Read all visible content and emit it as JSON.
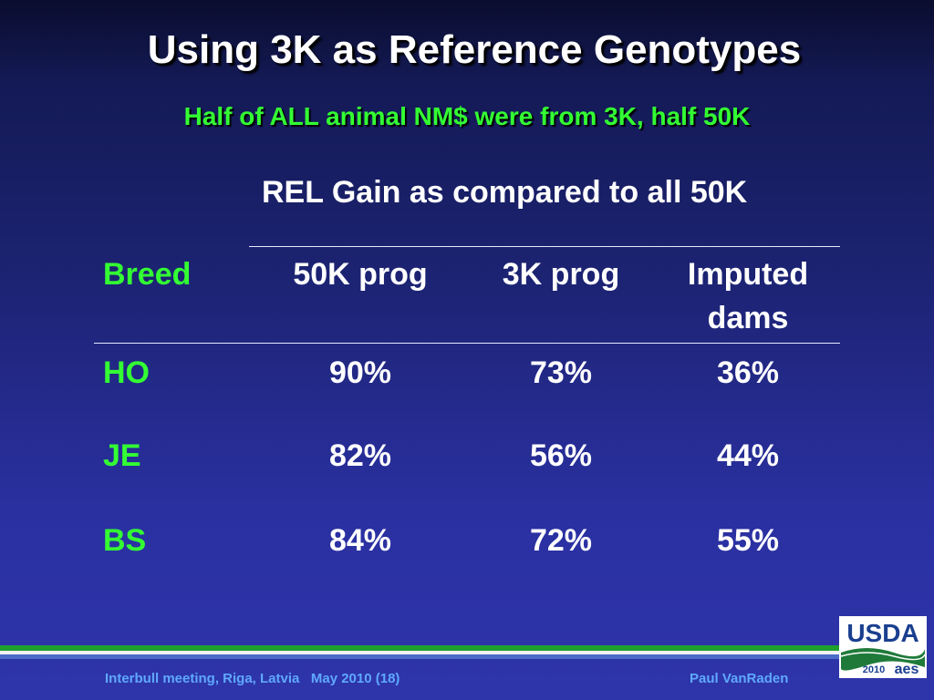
{
  "slide": {
    "title": "Using 3K as Reference Genotypes",
    "subtitle": "Half of  ALL animal NM$ were from 3K, half 50K",
    "table_heading": "REL Gain as compared to all 50K"
  },
  "table": {
    "headers": {
      "breed": "Breed",
      "col1": "50K prog",
      "col2": "3K prog",
      "col3_line1": "Imputed",
      "col3_line2": "dams"
    },
    "rows": [
      {
        "breed": "HO",
        "col1": "90%",
        "col2": "73%",
        "col3": "36%"
      },
      {
        "breed": "JE",
        "col1": "82%",
        "col2": "56%",
        "col3": "44%"
      },
      {
        "breed": "BS",
        "col1": "84%",
        "col2": "72%",
        "col3": "55%"
      }
    ]
  },
  "footer": {
    "left": "Interbull meeting, Riga, Latvia   May 2010 (18)",
    "right": "Paul VanRaden"
  },
  "logo": {
    "text": "USDA",
    "year": "2010",
    "mark": "aes",
    "icon": "usda-logo-icon"
  },
  "colors": {
    "accent_green": "#33ff33",
    "footer_text": "#5fa8ff",
    "rule_green": "#1fa02e",
    "rule_blue": "#4d6bc8"
  }
}
